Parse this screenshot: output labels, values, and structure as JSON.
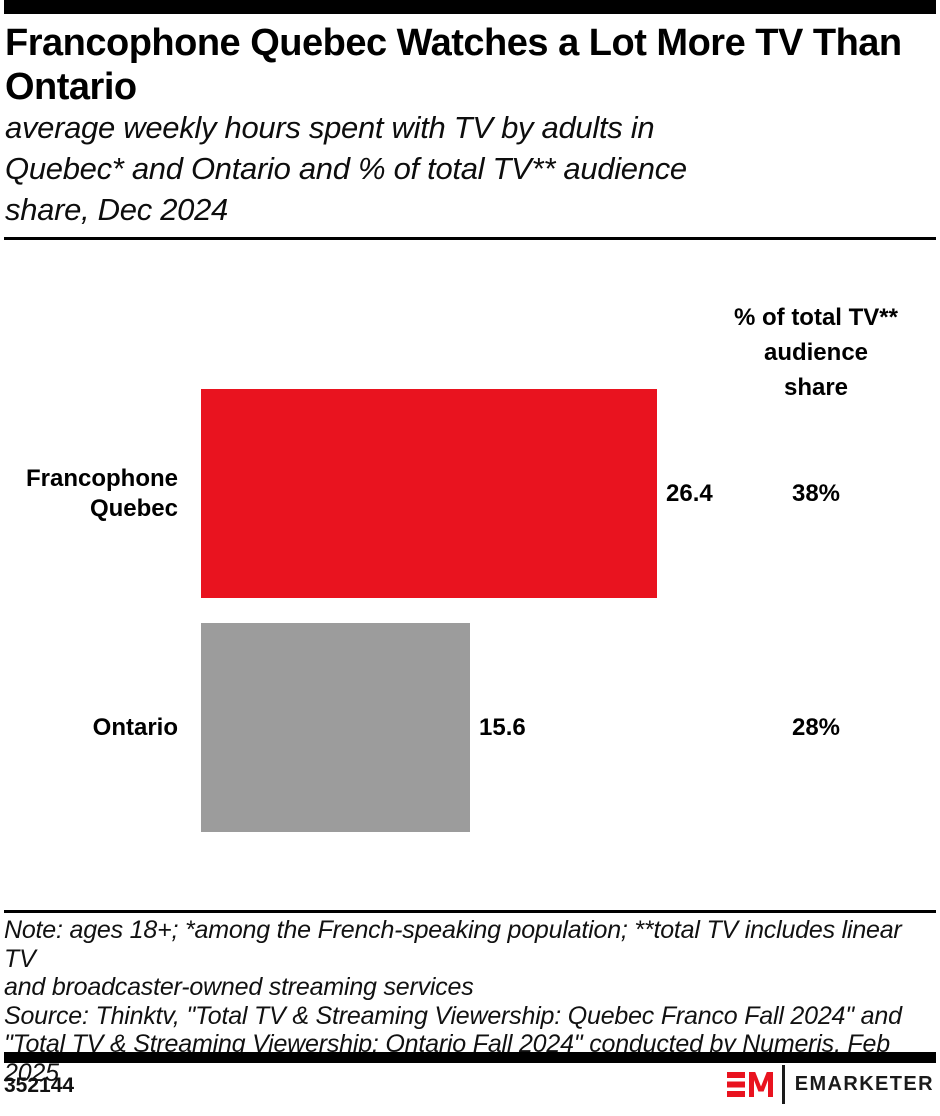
{
  "page": {
    "topbar_color": "#000000",
    "accent_red": "#e9131f",
    "bar_gray": "#9c9c9c"
  },
  "header": {
    "title": "Francophone Quebec Watches a Lot More TV Than Ontario",
    "title_lines": [
      "Francophone Quebec Watches a Lot More TV Than",
      "Ontario"
    ],
    "subtitle_lines": [
      "average weekly hours spent with TV by adults in",
      "Quebec* and Ontario and % of total TV** audience",
      "share, Dec 2024"
    ]
  },
  "chart_data": {
    "type": "bar",
    "orientation": "horizontal",
    "title": "Francophone Quebec Watches a Lot More TV Than Ontario",
    "subtitle": "average weekly hours spent with TV by adults in Quebec* and Ontario and % of total TV** audience share, Dec 2024",
    "xlabel": "average weekly hours spent with TV",
    "xlim": [
      0,
      26.4
    ],
    "grid": false,
    "legend": false,
    "categories": [
      "Francophone Quebec",
      "Ontario"
    ],
    "values": [
      26.4,
      15.6
    ],
    "share_column_header_lines": [
      "% of total TV**",
      "audience",
      "share"
    ],
    "rows": [
      {
        "label": "Francophone Quebec",
        "value": 26.4,
        "value_display": "26.4",
        "share": "38%",
        "bar_color": "#e9131f"
      },
      {
        "label": "Ontario",
        "value": 15.6,
        "value_display": "15.6",
        "share": "28%",
        "bar_color": "#9c9c9c"
      }
    ]
  },
  "notes": {
    "note_lines": [
      "Note: ages 18+; *among the French-speaking population; **total TV includes linear TV",
      "and broadcaster-owned streaming services"
    ],
    "source_lines": [
      "Source: Thinktv, \"Total TV & Streaming Viewership: Quebec Franco Fall 2024\" and",
      "\"Total TV & Streaming Viewership: Ontario Fall 2024\" conducted by Numeris, Feb",
      "2025"
    ]
  },
  "footer": {
    "chart_id": "352144",
    "brand_name": "EMARKETER",
    "brand_monogram": "EM"
  }
}
